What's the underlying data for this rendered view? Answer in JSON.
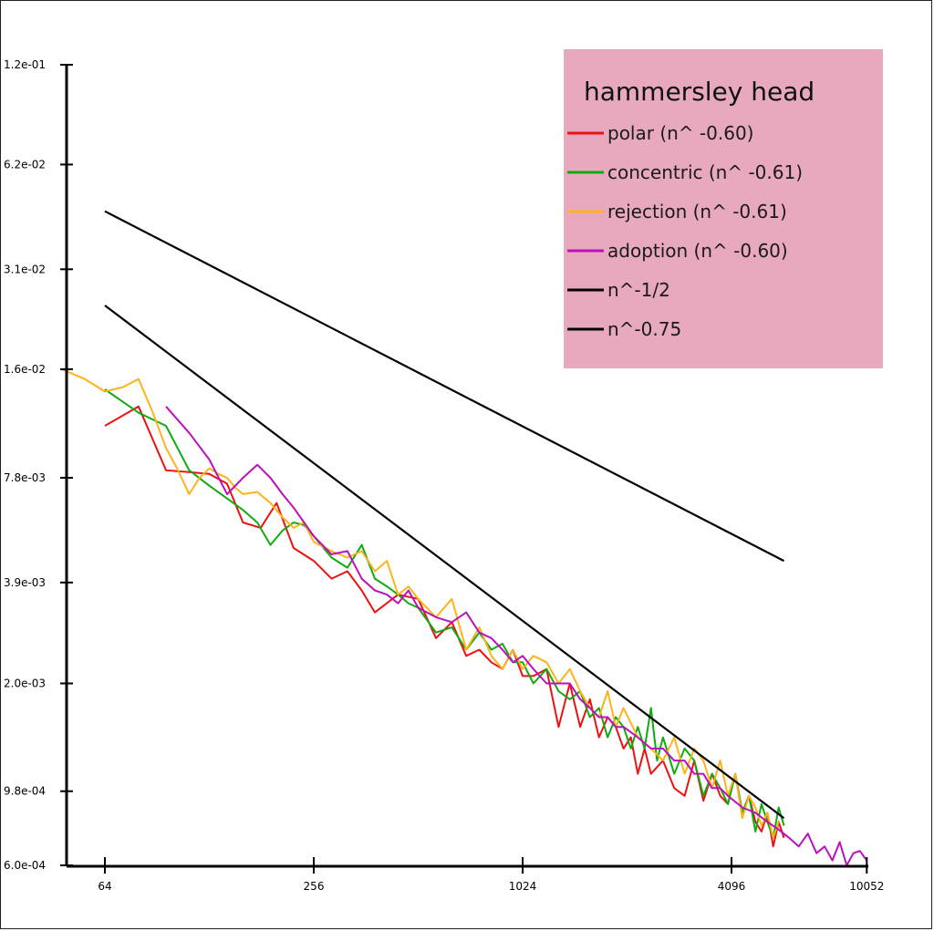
{
  "chart_data": {
    "type": "line",
    "title": "hammersley head",
    "xscale": "log2",
    "yscale": "log",
    "xlim": [
      48,
      10052
    ],
    "ylim": [
      0.0006,
      0.12
    ],
    "x_ticks": [
      "64",
      "256",
      "1024",
      "4096",
      "10052"
    ],
    "x_tick_values": [
      64,
      256,
      1024,
      4096,
      10052
    ],
    "y_ticks": [
      "1.2e-01",
      "6.2e-02",
      "3.1e-02",
      "1.6e-02",
      "7.8e-03",
      "3.9e-03",
      "2.0e-03",
      "9.8e-04",
      "6.0e-04"
    ],
    "y_tick_values": [
      0.12,
      0.062,
      0.031,
      0.016,
      0.0078,
      0.0039,
      0.002,
      0.00098,
      0.0006
    ],
    "legend_position": "top-right",
    "legend_background": "#e8a9bf",
    "series": [
      {
        "name": "polar (n^ -0.60)",
        "color": "#ee1111",
        "x": [
          64,
          80,
          96,
          112,
          128,
          144,
          160,
          180,
          200,
          224,
          256,
          288,
          320,
          352,
          384,
          448,
          512,
          576,
          640,
          704,
          768,
          832,
          896,
          960,
          1024,
          1100,
          1200,
          1300,
          1400,
          1500,
          1600,
          1700,
          1800,
          1900,
          2000,
          2100,
          2200,
          2300,
          2400,
          2600,
          2800,
          3000,
          3200,
          3400,
          3600,
          3800,
          4000,
          4200,
          4400,
          4600,
          4800,
          5000,
          5200,
          5400,
          5600,
          5800
        ],
        "y": [
          0.011,
          0.0125,
          0.0082,
          0.0081,
          0.008,
          0.0075,
          0.0058,
          0.0056,
          0.0066,
          0.0049,
          0.0045,
          0.004,
          0.0042,
          0.0037,
          0.0032,
          0.0036,
          0.0035,
          0.0027,
          0.003,
          0.0024,
          0.0025,
          0.0023,
          0.0022,
          0.0025,
          0.0021,
          0.0021,
          0.0022,
          0.0015,
          0.002,
          0.0015,
          0.0018,
          0.0014,
          0.0016,
          0.0015,
          0.0013,
          0.0014,
          0.0011,
          0.0013,
          0.0011,
          0.0012,
          0.001,
          0.00095,
          0.0012,
          0.00092,
          0.0011,
          0.00095,
          0.0009,
          0.0011,
          0.00085,
          0.00095,
          0.0008,
          0.00075,
          0.00085,
          0.00068,
          0.0008,
          0.00072
        ]
      },
      {
        "name": "concentric (n^ -0.61)",
        "color": "#11aa11",
        "x": [
          64,
          80,
          96,
          112,
          128,
          144,
          160,
          176,
          192,
          208,
          224,
          240,
          256,
          288,
          320,
          352,
          384,
          416,
          448,
          480,
          512,
          576,
          640,
          704,
          768,
          832,
          896,
          960,
          1024,
          1100,
          1200,
          1300,
          1400,
          1500,
          1600,
          1700,
          1800,
          1900,
          2000,
          2100,
          2200,
          2300,
          2400,
          2500,
          2600,
          2800,
          3000,
          3200,
          3400,
          3600,
          3800,
          4000,
          4200,
          4400,
          4600,
          4800,
          5000,
          5200,
          5400,
          5600,
          5800
        ],
        "y": [
          0.014,
          0.012,
          0.011,
          0.0082,
          0.0074,
          0.0068,
          0.0063,
          0.0058,
          0.005,
          0.0055,
          0.0058,
          0.0057,
          0.0053,
          0.0046,
          0.0043,
          0.005,
          0.004,
          0.0038,
          0.0036,
          0.0034,
          0.0033,
          0.0028,
          0.0029,
          0.0025,
          0.0028,
          0.0025,
          0.0026,
          0.0023,
          0.0023,
          0.002,
          0.0022,
          0.0019,
          0.0018,
          0.0019,
          0.0016,
          0.0017,
          0.0014,
          0.0016,
          0.0015,
          0.0013,
          0.0015,
          0.0013,
          0.0017,
          0.0012,
          0.0014,
          0.0011,
          0.0013,
          0.0012,
          0.00095,
          0.0011,
          0.001,
          0.0009,
          0.0011,
          0.00085,
          0.00095,
          0.00075,
          0.0009,
          0.0008,
          0.00072,
          0.00088,
          0.00078
        ]
      },
      {
        "name": "rejection (n^ -0.61)",
        "color": "#ffb31a",
        "x": [
          48,
          56,
          64,
          72,
          80,
          88,
          96,
          104,
          112,
          120,
          128,
          136,
          144,
          152,
          160,
          176,
          192,
          208,
          224,
          240,
          256,
          288,
          320,
          352,
          384,
          416,
          448,
          480,
          512,
          576,
          640,
          704,
          768,
          832,
          896,
          960,
          1024,
          1100,
          1200,
          1300,
          1400,
          1500,
          1600,
          1700,
          1800,
          1900,
          2000,
          2200,
          2400,
          2600,
          2800,
          3000,
          3200,
          3400,
          3600,
          3800,
          4000,
          4200,
          4400,
          4600,
          4800,
          5000,
          5200,
          5400,
          5600
        ],
        "y": [
          0.016,
          0.015,
          0.0138,
          0.0142,
          0.015,
          0.012,
          0.0095,
          0.0082,
          0.007,
          0.0078,
          0.0083,
          0.008,
          0.0078,
          0.0073,
          0.007,
          0.0071,
          0.0066,
          0.006,
          0.0056,
          0.0058,
          0.0051,
          0.0048,
          0.0046,
          0.0048,
          0.0042,
          0.0045,
          0.0036,
          0.0038,
          0.0035,
          0.0031,
          0.0035,
          0.0025,
          0.0029,
          0.0024,
          0.0022,
          0.0025,
          0.0022,
          0.0024,
          0.0023,
          0.002,
          0.0022,
          0.0019,
          0.0017,
          0.0016,
          0.0019,
          0.0015,
          0.0017,
          0.0014,
          0.0013,
          0.0012,
          0.0014,
          0.0011,
          0.0013,
          0.0012,
          0.001,
          0.0012,
          0.00095,
          0.0011,
          0.00082,
          0.00095,
          0.00088,
          0.00078,
          0.00085,
          0.00072,
          0.0008
        ]
      },
      {
        "name": "adoption (n^ -0.60)",
        "color": "#bb11bb",
        "x": [
          96,
          112,
          128,
          144,
          160,
          176,
          192,
          208,
          224,
          256,
          288,
          320,
          352,
          384,
          416,
          448,
          480,
          512,
          576,
          640,
          704,
          768,
          832,
          896,
          960,
          1024,
          1100,
          1200,
          1300,
          1400,
          1500,
          1600,
          1700,
          1800,
          1900,
          2000,
          2200,
          2400,
          2600,
          2800,
          3000,
          3200,
          3400,
          3600,
          3800,
          4000,
          4400,
          4800,
          5200,
          5600,
          6000,
          6400,
          6800,
          7200,
          7600,
          8000,
          8400,
          8800,
          9200,
          9600,
          10052
        ],
        "y": [
          0.0125,
          0.0105,
          0.0088,
          0.007,
          0.0078,
          0.0085,
          0.0078,
          0.007,
          0.0064,
          0.0053,
          0.0047,
          0.0048,
          0.004,
          0.0037,
          0.0036,
          0.0034,
          0.0037,
          0.0033,
          0.0031,
          0.003,
          0.0032,
          0.0028,
          0.0027,
          0.0025,
          0.0023,
          0.0024,
          0.0022,
          0.002,
          0.002,
          0.002,
          0.0018,
          0.0017,
          0.0016,
          0.0016,
          0.0015,
          0.0015,
          0.0014,
          0.0013,
          0.0013,
          0.0012,
          0.0012,
          0.0011,
          0.0011,
          0.001,
          0.001,
          0.00095,
          0.00088,
          0.00085,
          0.0008,
          0.00076,
          0.00072,
          0.00068,
          0.00074,
          0.00065,
          0.00068,
          0.00062,
          0.0007,
          0.0006,
          0.00065,
          0.00066,
          0.00062
        ]
      },
      {
        "name": "n^-1/2",
        "color": "#000000",
        "x": [
          64,
          5800
        ],
        "y": [
          0.0455,
          0.0045
        ]
      },
      {
        "name": "n^-0.75",
        "color": "#000000",
        "x": [
          64,
          5800
        ],
        "y": [
          0.0244,
          0.00082
        ]
      }
    ]
  }
}
